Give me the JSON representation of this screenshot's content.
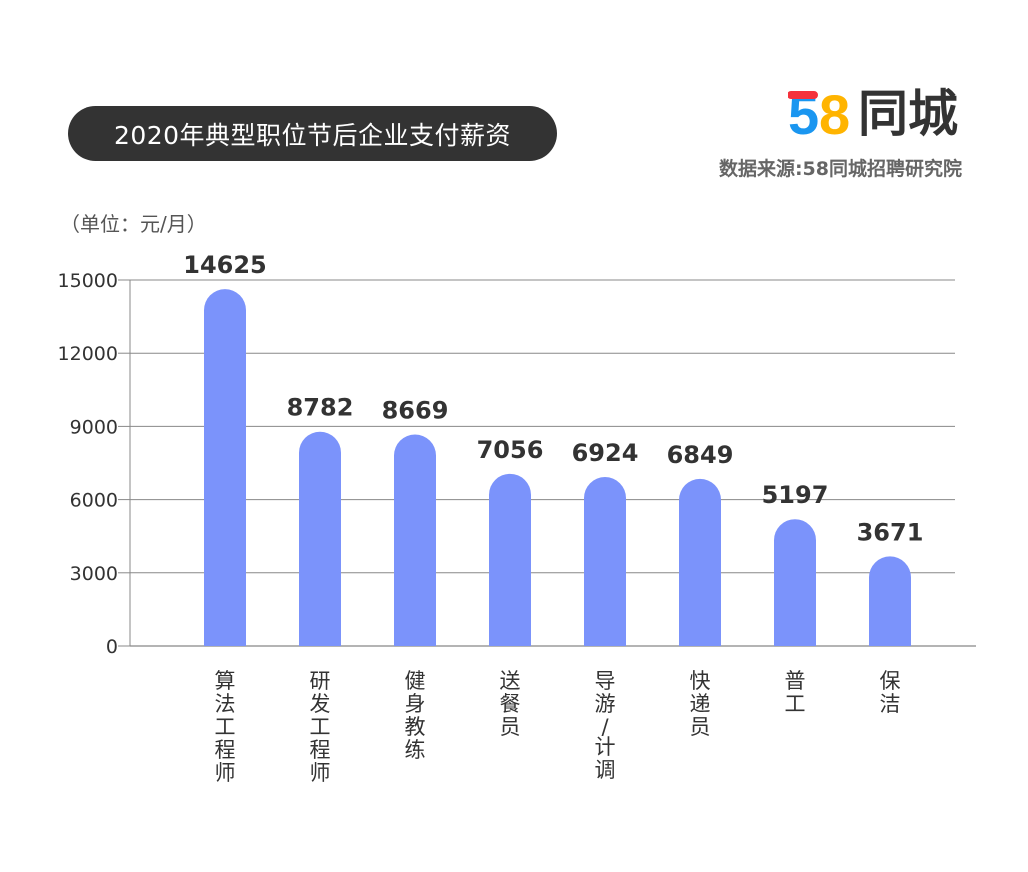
{
  "title": "2020年典型职位节后企业支付薪资",
  "logo": {
    "number": "58",
    "text": "同城",
    "colors": [
      "#f5323c",
      "#1a96f0",
      "#ffb400",
      "#27c35a"
    ]
  },
  "source": "数据来源:58同城招聘研究院",
  "unit": "（单位：元/月）",
  "colors": {
    "bar": "#7b93fb",
    "grid": "#888888",
    "title_bg": "#333333"
  },
  "chart_data": {
    "type": "bar",
    "categories": [
      "算法工程师",
      "研发工程师",
      "健身教练",
      "送餐员",
      "导游/计调",
      "快递员",
      "普工",
      "保洁"
    ],
    "category_display": [
      [
        "算",
        "法",
        "工",
        "程",
        "师"
      ],
      [
        "研",
        "发",
        "工",
        "程",
        "师"
      ],
      [
        "健",
        "身",
        "教",
        "练"
      ],
      [
        "送",
        "餐",
        "员"
      ],
      [
        "导",
        "游",
        "/",
        "计",
        "调"
      ],
      [
        "快",
        "递",
        "员"
      ],
      [
        "普",
        "工"
      ],
      [
        "保",
        "洁"
      ]
    ],
    "values": [
      14625,
      8782,
      8669,
      7056,
      6924,
      6849,
      5197,
      3671
    ],
    "ylim": [
      0,
      15000
    ],
    "yticks": [
      0,
      3000,
      6000,
      9000,
      12000,
      15000
    ],
    "grid": true,
    "data_labels": true
  }
}
